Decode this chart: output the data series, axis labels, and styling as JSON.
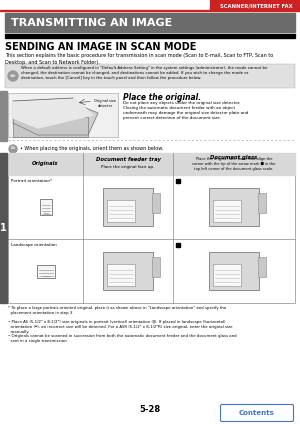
{
  "page_num": "5-28",
  "header_text": "SCANNER/INTERNET FAX",
  "header_bar_color": "#cc2222",
  "title_bg_color": "#6b6b6b",
  "title_text": "TRANSMITTING AN IMAGE",
  "title_text_color": "#ffffff",
  "section_title": "SENDING AN IMAGE IN SCAN MODE",
  "section_title_color": "#000000",
  "body_text": "This section explains the basic procedure for transmission in scan mode (Scan to E-mail, Scan to FTP, Scan to\nDesktop, and Scan to Network Folder).",
  "note_bg_color": "#e0e0e0",
  "note_text": "When a default address is configured in \"Default Address Setting\" in the system settings (administrator), the mode cannot be\nchanged, the destination cannot be changed, and destinations cannot be added. If you wish to change the mode or\ndestination, touch the [Cancel] key in the touch panel and then follow the procedure below.",
  "place_title": "Place the original.",
  "place_body": "Do not place any objects under the original size detector.\nClosing the automatic document feeder with an object\nunderneath may damage the original size detector plate and\nprevent correct detection of the document size.",
  "original_size_label": "Original size\ndetector",
  "when_placing_text": "When placing the originals, orient them as shown below.",
  "col1_header": "Originals",
  "col2_header": "Document feeder tray",
  "col2_sub": "Place the original face up.",
  "col3_header": "Document glass",
  "col3_body": "Place the original face down and align the\ncorner with the tip of the arrow mark ■ in the\ntop left corner of the document glass scale.",
  "row1_label": "Portrait orientation*",
  "row2_label": "Landscape orientation",
  "footnote1": "* To place a large portrait-oriented original, place it as shown above in \"Landscape orientation\" and specify the\n  placement orientation in step 3.",
  "footnote2": "• Place A5 (5-1/2\" x 8-1/2\") size originals in portrait (vertical) orientation (‖). If placed in landscape (horizontal)\n  orientation (═), an incorrect size will be detected. For a A5R (5-1/2\" x 8-1/2\"R) size original, enter the original size\n  manually.",
  "footnote3": "• Originals cannot be scanned in succession from both the automatic document feeder and the document glass and\n  sent in a single transmission.",
  "contents_btn_color": "#4472c4",
  "contents_text": "Contents",
  "step_num": "1",
  "step_bg_color": "#555555",
  "bg_color": "#ffffff",
  "table_border_color": "#888888",
  "table_header_bg": "#d8d8d8"
}
